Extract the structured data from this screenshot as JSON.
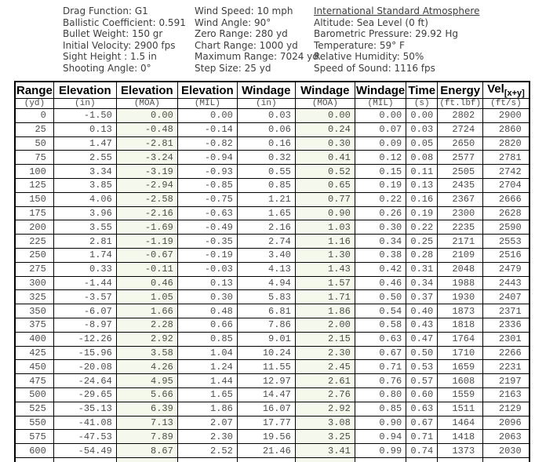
{
  "colors": {
    "tint": "#f4f9eb",
    "border": "#000000",
    "data_text": "#4d4d4d",
    "info_text": "#3d3d3d"
  },
  "info_columns": [
    {
      "name": "parameters",
      "lines": [
        {
          "text": "Drag Function: G1"
        },
        {
          "text": "Ballistic Coefficient: 0.591"
        },
        {
          "text": "Bullet Weight: 150 gr"
        },
        {
          "text": "Initial Velocity: 2900 fps"
        },
        {
          "text": "Sight Height : 1.5 in"
        },
        {
          "text": "Shooting Angle: 0°"
        }
      ]
    },
    {
      "name": "wind-and-range",
      "lines": [
        {
          "text": "Wind Speed: 10 mph"
        },
        {
          "text": "Wind Angle: 90°"
        },
        {
          "text": "Zero Range: 280 yd"
        },
        {
          "text": "Chart Range: 1000 yd"
        },
        {
          "text": "Maximum Range: 7024 yd"
        },
        {
          "text": "Step Size: 25 yd"
        }
      ]
    },
    {
      "name": "atmosphere",
      "lines": [
        {
          "text": "International Standard Atmosphere",
          "underline": true
        },
        {
          "text": "Altitude: Sea Level (0 ft)"
        },
        {
          "text": "Barometric Pressure: 29.92 Hg"
        },
        {
          "text": "Temperature: 59° F"
        },
        {
          "text": "Relative Humidity: 50%"
        },
        {
          "text": "Speed of Sound: 1116 fps"
        }
      ]
    }
  ],
  "table": {
    "headers": [
      {
        "key": "range",
        "text": "Range"
      },
      {
        "key": "elevation-in",
        "text": "Elevation"
      },
      {
        "key": "elevation-moa",
        "text": "Elevation"
      },
      {
        "key": "elevation-mil",
        "text": "Elevation"
      },
      {
        "key": "windage-in",
        "text": "Windage"
      },
      {
        "key": "windage-moa",
        "text": "Windage"
      },
      {
        "key": "windage-mil",
        "text": "Windage"
      },
      {
        "key": "time",
        "text": "Time"
      },
      {
        "key": "energy",
        "text": "Energy"
      },
      {
        "key": "vel",
        "text": "Vel",
        "sub": "[x+y]"
      }
    ],
    "units": [
      "(yd)",
      "(in)",
      "(MOA)",
      "(MIL)",
      "(in)",
      "(MOA)",
      "(MIL)",
      "(s)",
      "(ft.lbf)",
      "(ft/s)"
    ],
    "tinted_columns": [
      2,
      5
    ],
    "rows": [
      [
        "0",
        "-1.50",
        "0.00",
        "0.00",
        "0.03",
        "0.00",
        "0.00",
        "0.00",
        "2802",
        "2900"
      ],
      [
        "25",
        "0.13",
        "-0.48",
        "-0.14",
        "0.06",
        "0.24",
        "0.07",
        "0.03",
        "2724",
        "2860"
      ],
      [
        "50",
        "1.47",
        "-2.81",
        "-0.82",
        "0.16",
        "0.30",
        "0.09",
        "0.05",
        "2650",
        "2820"
      ],
      [
        "75",
        "2.55",
        "-3.24",
        "-0.94",
        "0.32",
        "0.41",
        "0.12",
        "0.08",
        "2577",
        "2781"
      ],
      [
        "100",
        "3.34",
        "-3.19",
        "-0.93",
        "0.55",
        "0.52",
        "0.15",
        "0.11",
        "2505",
        "2742"
      ],
      [
        "125",
        "3.85",
        "-2.94",
        "-0.85",
        "0.85",
        "0.65",
        "0.19",
        "0.13",
        "2435",
        "2704"
      ],
      [
        "150",
        "4.06",
        "-2.58",
        "-0.75",
        "1.21",
        "0.77",
        "0.22",
        "0.16",
        "2367",
        "2666"
      ],
      [
        "175",
        "3.96",
        "-2.16",
        "-0.63",
        "1.65",
        "0.90",
        "0.26",
        "0.19",
        "2300",
        "2628"
      ],
      [
        "200",
        "3.55",
        "-1.69",
        "-0.49",
        "2.16",
        "1.03",
        "0.30",
        "0.22",
        "2235",
        "2590"
      ],
      [
        "225",
        "2.81",
        "-1.19",
        "-0.35",
        "2.74",
        "1.16",
        "0.34",
        "0.25",
        "2171",
        "2553"
      ],
      [
        "250",
        "1.74",
        "-0.67",
        "-0.19",
        "3.40",
        "1.30",
        "0.38",
        "0.28",
        "2109",
        "2516"
      ],
      [
        "275",
        "0.33",
        "-0.11",
        "-0.03",
        "4.13",
        "1.43",
        "0.42",
        "0.31",
        "2048",
        "2479"
      ],
      [
        "300",
        "-1.44",
        "0.46",
        "0.13",
        "4.94",
        "1.57",
        "0.46",
        "0.34",
        "1988",
        "2443"
      ],
      [
        "325",
        "-3.57",
        "1.05",
        "0.30",
        "5.83",
        "1.71",
        "0.50",
        "0.37",
        "1930",
        "2407"
      ],
      [
        "350",
        "-6.07",
        "1.66",
        "0.48",
        "6.81",
        "1.86",
        "0.54",
        "0.40",
        "1873",
        "2371"
      ],
      [
        "375",
        "-8.97",
        "2.28",
        "0.66",
        "7.86",
        "2.00",
        "0.58",
        "0.43",
        "1818",
        "2336"
      ],
      [
        "400",
        "-12.26",
        "2.92",
        "0.85",
        "9.01",
        "2.15",
        "0.63",
        "0.47",
        "1764",
        "2301"
      ],
      [
        "425",
        "-15.96",
        "3.58",
        "1.04",
        "10.24",
        "2.30",
        "0.67",
        "0.50",
        "1710",
        "2266"
      ],
      [
        "450",
        "-20.08",
        "4.26",
        "1.24",
        "11.55",
        "2.45",
        "0.71",
        "0.53",
        "1659",
        "2231"
      ],
      [
        "475",
        "-24.64",
        "4.95",
        "1.44",
        "12.97",
        "2.61",
        "0.76",
        "0.57",
        "1608",
        "2197"
      ],
      [
        "500",
        "-29.65",
        "5.66",
        "1.65",
        "14.47",
        "2.76",
        "0.80",
        "0.60",
        "1559",
        "2163"
      ],
      [
        "525",
        "-35.13",
        "6.39",
        "1.86",
        "16.07",
        "2.92",
        "0.85",
        "0.63",
        "1511",
        "2129"
      ],
      [
        "550",
        "-41.08",
        "7.13",
        "2.07",
        "17.77",
        "3.08",
        "0.90",
        "0.67",
        "1464",
        "2096"
      ],
      [
        "575",
        "-47.53",
        "7.89",
        "2.30",
        "19.56",
        "3.25",
        "0.94",
        "0.71",
        "1418",
        "2063"
      ],
      [
        "600",
        "-54.49",
        "8.67",
        "2.52",
        "21.46",
        "3.41",
        "0.99",
        "0.74",
        "1373",
        "2030"
      ]
    ],
    "partial_row": true
  }
}
